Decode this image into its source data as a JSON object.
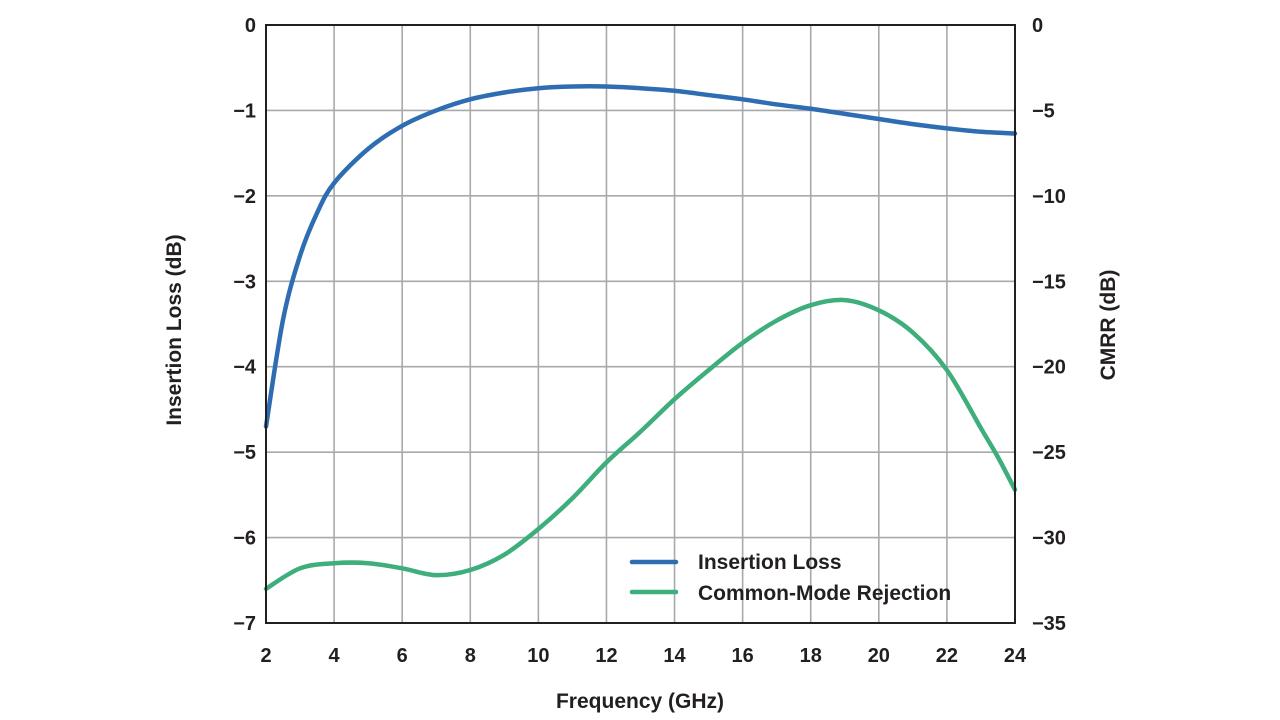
{
  "chart_data": {
    "type": "line",
    "xlabel": "Frequency (GHz)",
    "ylabel_left": "Insertion Loss (dB)",
    "ylabel_right": "CMRR (dB)",
    "xlim": [
      2,
      24
    ],
    "ylim_left": [
      -7,
      0
    ],
    "ylim_right": [
      -35,
      0
    ],
    "x_ticks": [
      2,
      4,
      6,
      8,
      10,
      12,
      14,
      16,
      18,
      20,
      22,
      24
    ],
    "y_left_ticks": [
      0,
      -1,
      -2,
      -3,
      -4,
      -5,
      -6,
      -7
    ],
    "y_left_tick_labels": [
      "0",
      "−1",
      "−2",
      "−3",
      "−4",
      "−5",
      "−6",
      "−7"
    ],
    "y_right_ticks": [
      0,
      -5,
      -10,
      -15,
      -20,
      -25,
      -30,
      -35
    ],
    "y_right_tick_labels": [
      "0",
      "−5",
      "−10",
      "−15",
      "−20",
      "−25",
      "−30",
      "−35"
    ],
    "grid": true,
    "legend_position": "bottom-right",
    "series": [
      {
        "name": "Insertion Loss",
        "axis": "left",
        "color": "#2f6db3",
        "x": [
          2,
          2.5,
          3,
          3.5,
          4,
          5,
          6,
          7,
          8,
          9,
          10,
          11,
          12,
          13,
          14,
          15,
          16,
          17,
          18,
          19,
          20,
          21,
          22,
          23,
          24
        ],
        "y": [
          -4.7,
          -3.45,
          -2.7,
          -2.2,
          -1.85,
          -1.45,
          -1.18,
          -1.0,
          -0.87,
          -0.79,
          -0.74,
          -0.72,
          -0.72,
          -0.74,
          -0.77,
          -0.82,
          -0.87,
          -0.93,
          -0.98,
          -1.04,
          -1.1,
          -1.16,
          -1.21,
          -1.25,
          -1.27
        ]
      },
      {
        "name": "Common-Mode Rejection",
        "axis": "right",
        "color": "#3dae7c",
        "x": [
          2,
          3,
          4,
          5,
          6,
          7,
          8,
          9,
          10,
          11,
          12,
          13,
          14,
          15,
          16,
          17,
          18,
          19,
          20,
          21,
          22,
          23,
          23.5,
          24
        ],
        "y": [
          -33.0,
          -31.8,
          -31.5,
          -31.5,
          -31.8,
          -32.2,
          -31.9,
          -31.0,
          -29.5,
          -27.7,
          -25.6,
          -23.8,
          -21.9,
          -20.2,
          -18.6,
          -17.3,
          -16.4,
          -16.1,
          -16.7,
          -18.0,
          -20.2,
          -23.6,
          -25.3,
          -27.2
        ]
      }
    ]
  }
}
